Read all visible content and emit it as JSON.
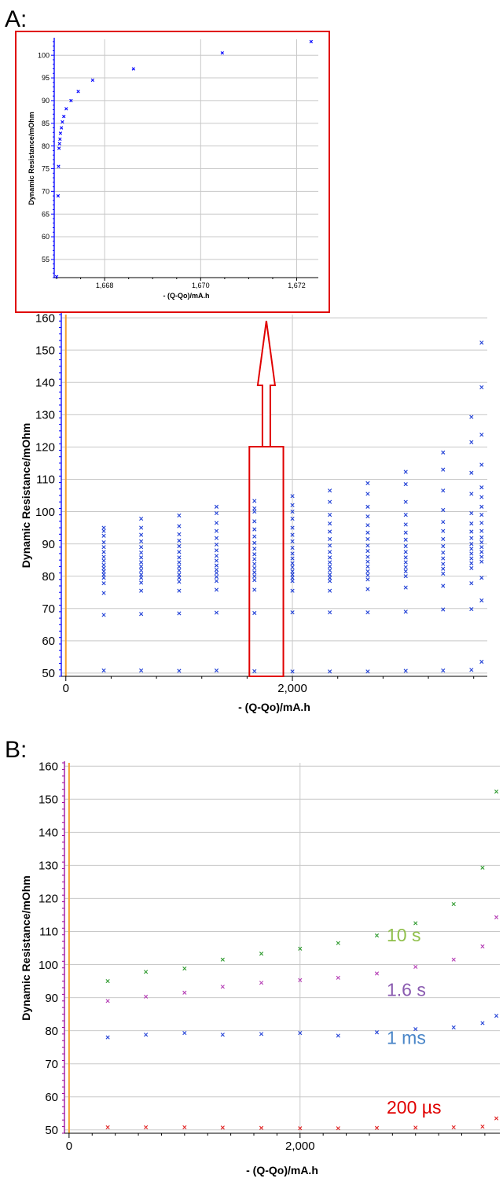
{
  "panels": {
    "a_label": "A:",
    "b_label": "B:"
  },
  "colors": {
    "axis_blue": "#0000ff",
    "axis_purple": "#990099",
    "zero_line": "#f5a030",
    "grid": "#c8c8c8",
    "highlight_red": "#e00000",
    "series_green": "#2e9a2e",
    "series_purple": "#b43cb4",
    "series_blue": "#1f3fd6",
    "series_red": "#e02020",
    "ann_green": "#8fbf4a",
    "ann_purple": "#8a5bb0",
    "ann_blue": "#4a86c8",
    "ann_red": "#e00000"
  },
  "chart_data": [
    {
      "id": "inset",
      "type": "scatter",
      "title": "",
      "xlabel": "- (Q-Qo)/mA.h",
      "ylabel": "Dynamic Resistance/mOhm",
      "xlim": [
        1666.95,
        1672.45
      ],
      "ylim": [
        51,
        103.5
      ],
      "grid": true,
      "xticks": [
        1668,
        1670,
        1672
      ],
      "xtick_labels": [
        "1,668",
        "1,670",
        "1,672"
      ],
      "yticks": [
        55,
        60,
        65,
        70,
        75,
        80,
        85,
        90,
        95,
        100
      ],
      "ytick_labels": [
        "55",
        "60",
        "65",
        "70",
        "75",
        "80",
        "85",
        "90",
        "95",
        "100"
      ],
      "series": [
        {
          "color": "#0000ff",
          "points": [
            [
              1667.0,
              51.2
            ],
            [
              1667.03,
              69.0
            ],
            [
              1667.04,
              75.5
            ],
            [
              1667.05,
              79.5
            ],
            [
              1667.06,
              80.5
            ],
            [
              1667.07,
              81.5
            ],
            [
              1667.08,
              82.8
            ],
            [
              1667.1,
              84.0
            ],
            [
              1667.12,
              85.3
            ],
            [
              1667.15,
              86.5
            ],
            [
              1667.2,
              88.2
            ],
            [
              1667.3,
              90.0
            ],
            [
              1667.45,
              92.0
            ],
            [
              1667.75,
              94.5
            ],
            [
              1668.6,
              97.0
            ],
            [
              1670.45,
              100.5
            ],
            [
              1672.3,
              103.0
            ]
          ]
        }
      ]
    },
    {
      "id": "panel-a",
      "type": "scatter",
      "title": "",
      "xlabel": "- (Q-Qo)/mA.h",
      "ylabel": "Dynamic Resistance/mOhm",
      "xlim": [
        -40,
        3720
      ],
      "ylim": [
        49,
        161
      ],
      "grid": true,
      "xticks": [
        0,
        2000
      ],
      "xtick_labels": [
        "0",
        "2,000"
      ],
      "yticks": [
        50,
        60,
        70,
        80,
        90,
        100,
        110,
        120,
        130,
        140,
        150,
        160
      ],
      "ytick_labels": [
        "50",
        "60",
        "70",
        "80",
        "90",
        "100",
        "110",
        "120",
        "130",
        "140",
        "150",
        "160"
      ],
      "highlight_range_x": [
        1620,
        1920
      ],
      "series": [
        {
          "color": "#1f3fd6",
          "columns": [
            {
              "x": 335,
              "values": [
                50.8,
                68.0,
                74.8,
                77.8,
                79.5,
                80.5,
                81.5,
                82.5,
                83.5,
                84.8,
                86.0,
                87.5,
                89.0,
                90.5,
                92.5,
                94.0,
                95.0
              ]
            },
            {
              "x": 665,
              "values": [
                50.8,
                68.3,
                75.5,
                78.0,
                79.5,
                80.5,
                81.8,
                83.0,
                84.3,
                85.8,
                87.3,
                89.0,
                90.8,
                92.8,
                95.0,
                97.8
              ]
            },
            {
              "x": 1000,
              "values": [
                50.7,
                68.5,
                75.5,
                78.3,
                79.5,
                80.5,
                81.8,
                83.0,
                84.3,
                85.8,
                87.5,
                89.3,
                91.0,
                93.0,
                95.5,
                98.8
              ]
            },
            {
              "x": 1330,
              "values": [
                50.8,
                68.7,
                75.8,
                78.5,
                79.8,
                81.0,
                82.0,
                83.3,
                84.8,
                86.3,
                88.0,
                89.8,
                91.8,
                94.0,
                96.5,
                99.5,
                101.5
              ]
            },
            {
              "x": 1665,
              "values": [
                50.6,
                68.6,
                75.8,
                78.8,
                80.0,
                81.2,
                82.5,
                83.8,
                85.3,
                86.8,
                88.5,
                90.3,
                92.3,
                94.5,
                97.0,
                100.0,
                101.0,
                103.3
              ]
            },
            {
              "x": 2000,
              "values": [
                50.5,
                68.8,
                75.5,
                78.5,
                79.5,
                80.5,
                81.5,
                82.8,
                84.0,
                85.5,
                87.0,
                88.8,
                90.8,
                92.8,
                95.0,
                97.8,
                100.0,
                102.0,
                104.8
              ]
            },
            {
              "x": 2330,
              "values": [
                50.5,
                68.8,
                75.5,
                78.5,
                79.5,
                80.5,
                81.8,
                83.0,
                84.3,
                85.8,
                87.5,
                89.5,
                91.5,
                93.8,
                96.3,
                99.0,
                103.0,
                106.5
              ]
            },
            {
              "x": 2665,
              "values": [
                50.5,
                68.8,
                76.0,
                79.0,
                80.3,
                81.5,
                83.0,
                84.5,
                86.0,
                87.8,
                89.5,
                91.5,
                93.5,
                95.8,
                98.5,
                101.5,
                105.5,
                108.8
              ]
            },
            {
              "x": 3000,
              "values": [
                50.7,
                69.0,
                76.5,
                80.0,
                81.5,
                82.8,
                84.3,
                85.8,
                87.5,
                89.3,
                91.3,
                93.5,
                96.0,
                99.0,
                103.0,
                108.5,
                112.3
              ]
            },
            {
              "x": 3330,
              "values": [
                50.8,
                69.7,
                77.0,
                80.8,
                82.3,
                83.8,
                85.5,
                87.3,
                89.3,
                91.5,
                94.0,
                96.8,
                100.5,
                106.5,
                113.0,
                118.3
              ]
            },
            {
              "x": 3580,
              "values": [
                51.0,
                69.8,
                77.8,
                82.5,
                84.0,
                85.5,
                87.0,
                88.5,
                90.0,
                91.8,
                93.8,
                96.3,
                99.5,
                105.5,
                112.0,
                121.5,
                129.3
              ]
            },
            {
              "x": 3670,
              "values": [
                53.5,
                72.5,
                79.5,
                84.5,
                86.0,
                87.5,
                89.0,
                90.5,
                92.0,
                94.0,
                96.5,
                99.0,
                101.5,
                104.5,
                107.5,
                114.5,
                123.8,
                138.5,
                152.3
              ]
            }
          ]
        }
      ]
    },
    {
      "id": "panel-b",
      "type": "scatter",
      "title": "",
      "xlabel": "- (Q-Qo)/mA.h",
      "ylabel": "Dynamic Resistance/mOhm",
      "xlim": [
        -40,
        3730
      ],
      "ylim": [
        49,
        161
      ],
      "grid": true,
      "xticks": [
        0,
        2000
      ],
      "xtick_labels": [
        "0",
        "2,000"
      ],
      "yticks": [
        50,
        60,
        70,
        80,
        90,
        100,
        110,
        120,
        130,
        140,
        150,
        160
      ],
      "ytick_labels": [
        "50",
        "60",
        "70",
        "80",
        "90",
        "100",
        "110",
        "120",
        "130",
        "140",
        "150",
        "160"
      ],
      "annotations": [
        {
          "text": "10 s",
          "x": 2750,
          "y": 107,
          "color_key": "ann_green"
        },
        {
          "text": "1.6 s",
          "x": 2750,
          "y": 90.5,
          "color_key": "ann_purple"
        },
        {
          "text": "1 ms",
          "x": 2750,
          "y": 76,
          "color_key": "ann_blue"
        },
        {
          "text": "200 µs",
          "x": 2750,
          "y": 55,
          "color_key": "ann_red"
        }
      ],
      "series": [
        {
          "label": "10 s",
          "color": "#2e9a2e",
          "x": [
            335,
            665,
            1000,
            1330,
            1665,
            2000,
            2330,
            2665,
            3000,
            3330,
            3580,
            3700
          ],
          "y": [
            95.0,
            97.8,
            98.8,
            101.5,
            103.3,
            104.8,
            106.5,
            108.8,
            112.5,
            118.3,
            129.3,
            152.3
          ]
        },
        {
          "label": "1.6 s",
          "color": "#b43cb4",
          "x": [
            335,
            665,
            1000,
            1330,
            1665,
            2000,
            2330,
            2665,
            3000,
            3330,
            3580,
            3700
          ],
          "y": [
            89.0,
            90.3,
            91.5,
            93.3,
            94.5,
            95.3,
            96.0,
            97.3,
            99.3,
            101.5,
            105.5,
            114.3
          ]
        },
        {
          "label": "1 ms",
          "color": "#1f3fd6",
          "x": [
            335,
            665,
            1000,
            1330,
            1665,
            2000,
            2330,
            2665,
            3000,
            3330,
            3580,
            3700
          ],
          "y": [
            78.0,
            78.8,
            79.3,
            78.8,
            79.0,
            79.3,
            78.5,
            79.5,
            80.5,
            81.0,
            82.3,
            84.5
          ]
        },
        {
          "label": "200 µs",
          "color": "#e02020",
          "x": [
            335,
            665,
            1000,
            1330,
            1665,
            2000,
            2330,
            2665,
            3000,
            3330,
            3580,
            3700
          ],
          "y": [
            50.8,
            50.8,
            50.8,
            50.7,
            50.6,
            50.5,
            50.5,
            50.6,
            50.7,
            50.8,
            51.0,
            53.5
          ]
        }
      ]
    }
  ]
}
